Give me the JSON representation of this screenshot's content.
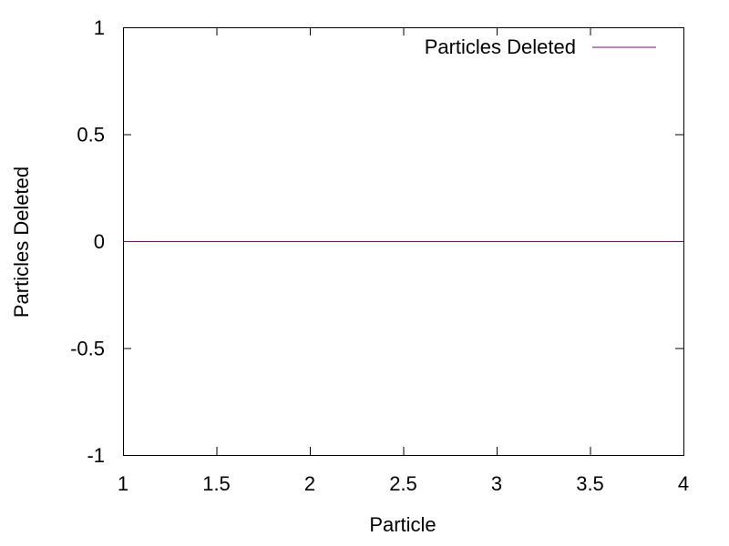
{
  "chart_data": {
    "type": "line",
    "title": "",
    "xlabel": "Particle",
    "ylabel": "Particles Deleted",
    "xlim": [
      1,
      4
    ],
    "ylim": [
      -1,
      1
    ],
    "xticks": [
      "1",
      "1.5",
      "2",
      "2.5",
      "3",
      "3.5",
      "4"
    ],
    "yticks": [
      "1",
      "0.5",
      "0",
      "-0.5",
      "-1"
    ],
    "grid": false,
    "legend_position": "top-right",
    "series": [
      {
        "name": "Particles Deleted",
        "color": "#800080",
        "x": [
          1,
          2,
          3,
          4
        ],
        "y": [
          0,
          0,
          0,
          0
        ]
      }
    ]
  }
}
